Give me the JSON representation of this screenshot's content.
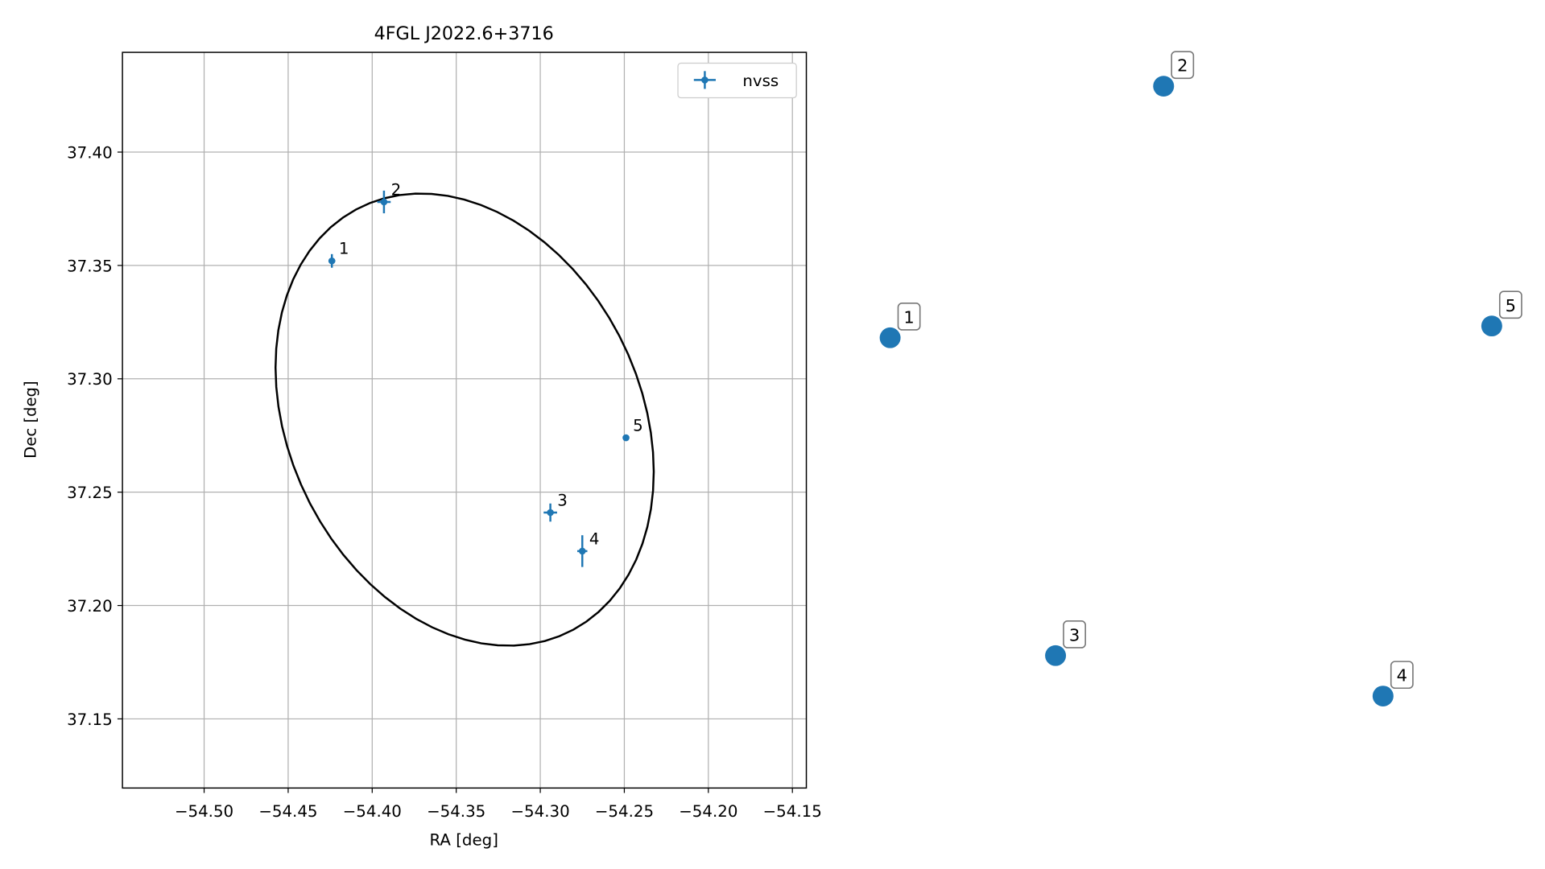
{
  "chart_data": [
    {
      "type": "scatter",
      "title": "4FGL J2022.6+3716",
      "xlabel": "RA [deg]",
      "ylabel": "Dec [deg]",
      "xlim": [
        -54.5486,
        -54.1417
      ],
      "ylim": [
        37.1195,
        37.444
      ],
      "xticks": [
        {
          "value": -54.5,
          "label": "−54.50"
        },
        {
          "value": -54.45,
          "label": "−54.45"
        },
        {
          "value": -54.4,
          "label": "−54.40"
        },
        {
          "value": -54.35,
          "label": "−54.35"
        },
        {
          "value": -54.3,
          "label": "−54.30"
        },
        {
          "value": -54.25,
          "label": "−54.25"
        },
        {
          "value": -54.2,
          "label": "−54.20"
        },
        {
          "value": -54.15,
          "label": "−54.15"
        }
      ],
      "yticks": [
        37.15,
        {
          "value": 37.2,
          "label": "37.20"
        },
        37.25,
        {
          "value": 37.3,
          "label": "37.30"
        },
        37.35,
        {
          "value": 37.4,
          "label": "37.40"
        }
      ],
      "grid": true,
      "legend": "upper right",
      "series": [
        {
          "name": "nvss",
          "color": "#1f77b4",
          "x": [
            -54.424,
            -54.393,
            -54.294,
            -54.275,
            -54.249
          ],
          "values": [
            37.352,
            37.378,
            37.241,
            37.224,
            37.274
          ],
          "xerr": [
            0.002,
            0.004,
            0.004,
            0.003,
            0.0005
          ],
          "yerr": [
            0.003,
            0.005,
            0.004,
            0.007,
            0.0005
          ],
          "labels": [
            "1",
            "2",
            "3",
            "4",
            "5"
          ]
        }
      ],
      "ellipse": {
        "center": [
          -54.345,
          37.282
        ],
        "semi_major": 0.1193,
        "semi_minor": 0.0915,
        "angle": -31.2,
        "color": "#000000"
      }
    },
    {
      "type": "scatter",
      "axes": false,
      "xlim": [
        0,
        1
      ],
      "ylim": [
        0,
        1
      ],
      "series": [
        {
          "color": "#1f77b4",
          "x": [
            0.051,
            0.461,
            0.299,
            0.79,
            0.953
          ],
          "values": [
            0.612,
            0.954,
            0.18,
            0.125,
            0.628
          ],
          "labels": [
            "1",
            "2",
            "3",
            "4",
            "5"
          ]
        }
      ]
    }
  ]
}
